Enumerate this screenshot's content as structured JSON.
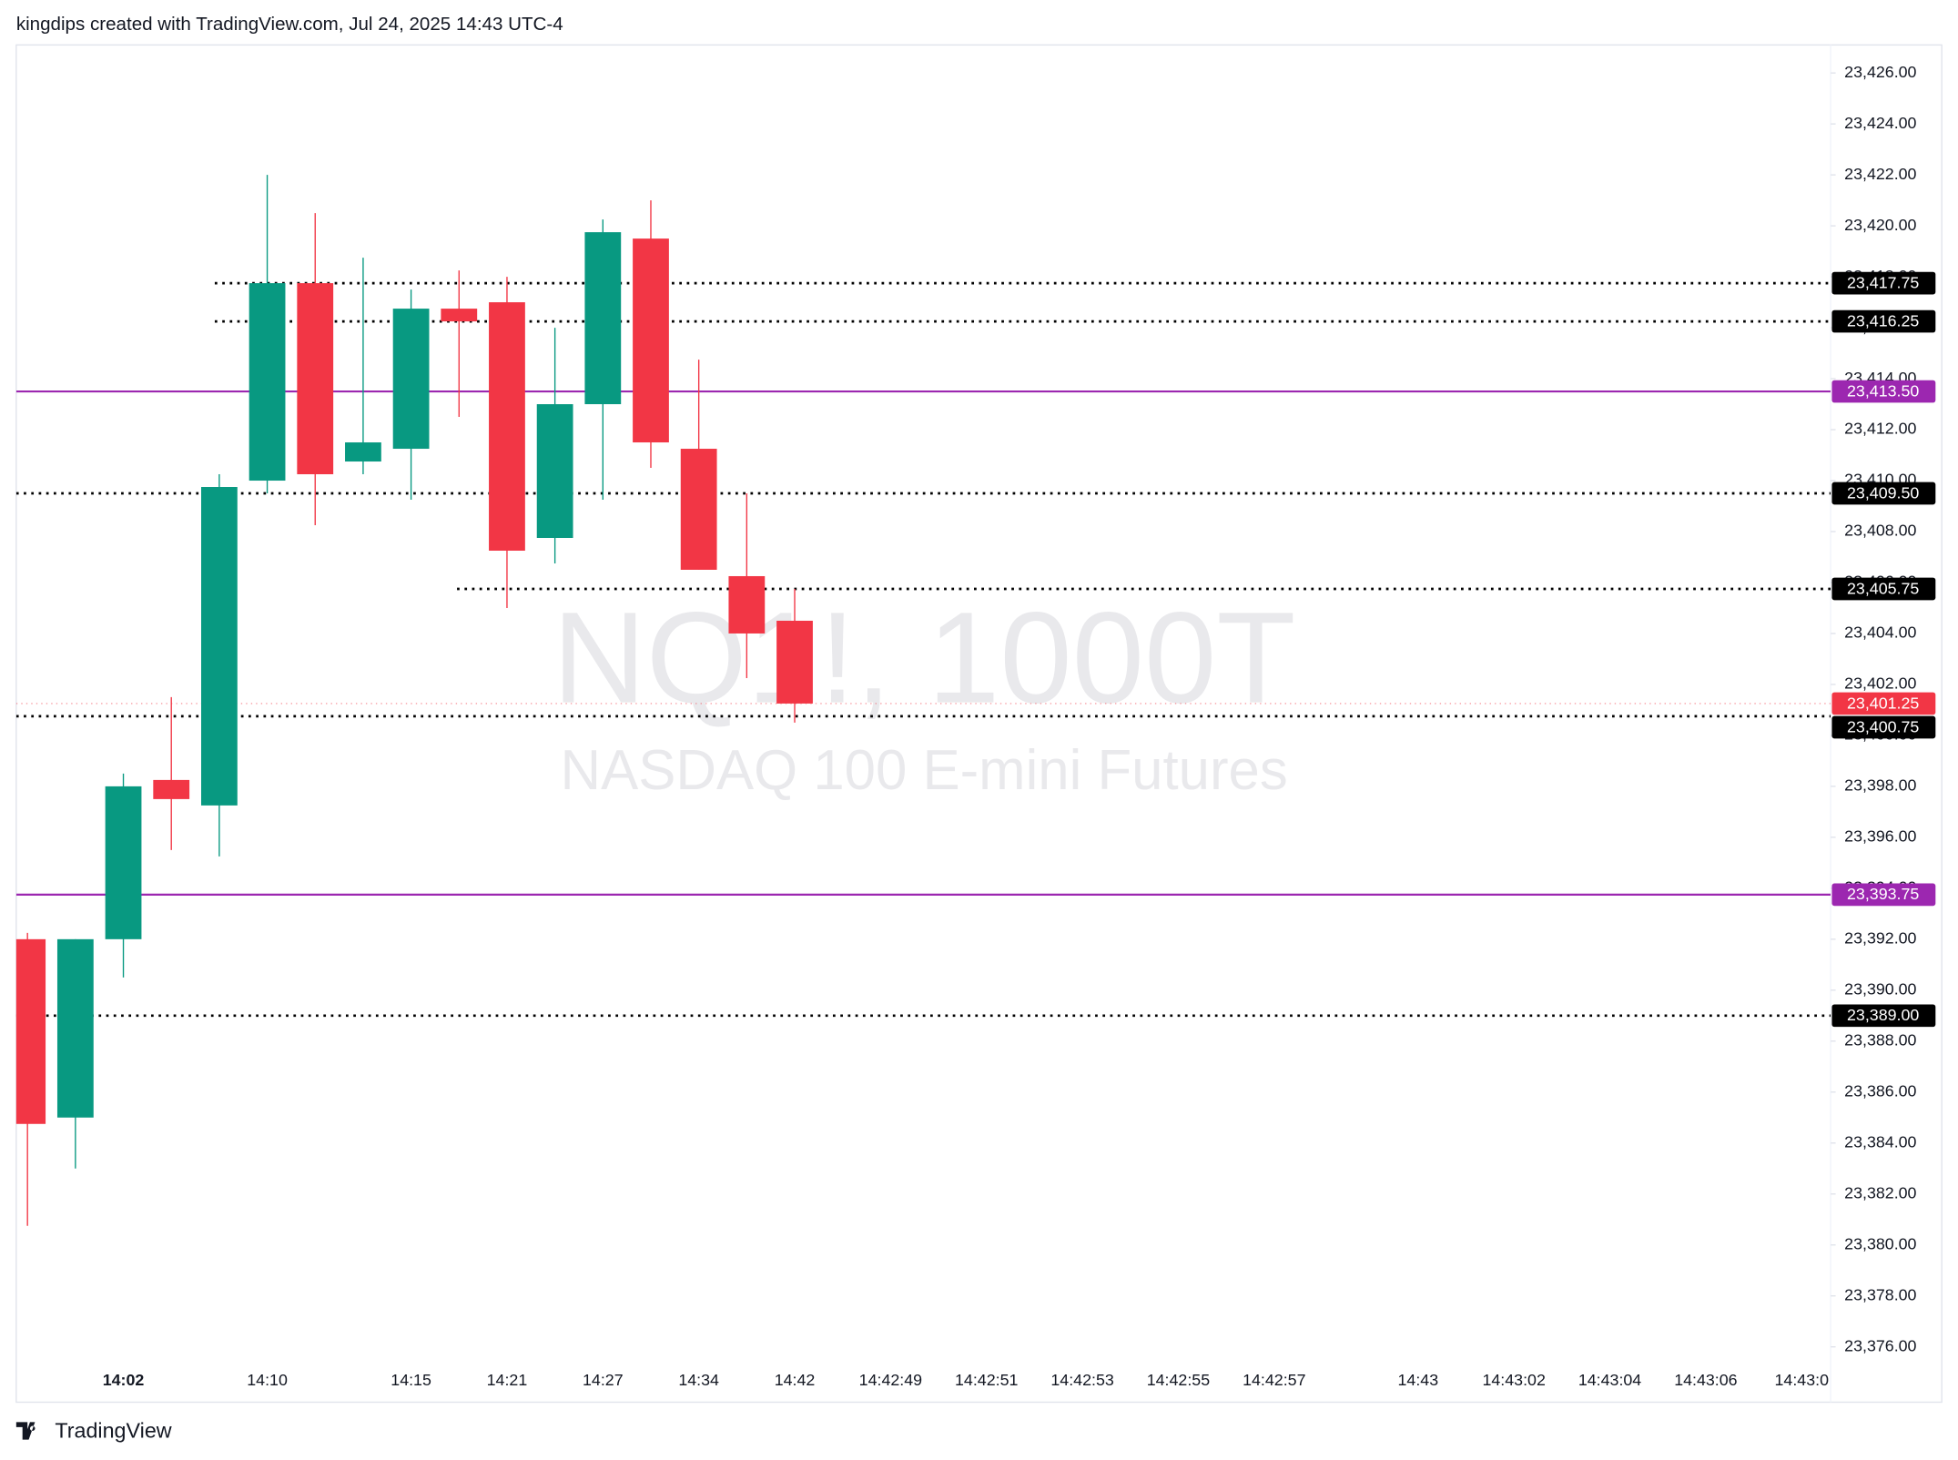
{
  "header_text": "kingdips created with TradingView.com, Jul 24, 2025 14:43 UTC-4",
  "watermark": {
    "symbol": "NQ1!, 1000T",
    "description": "NASDAQ 100 E-mini Futures"
  },
  "brand": "TradingView",
  "chart_data": {
    "type": "candlestick",
    "categories": [
      null,
      null,
      "14:02",
      null,
      null,
      "14:10",
      null,
      null,
      "14:15",
      null,
      "14:21",
      null,
      "14:27",
      null,
      "14:34",
      null,
      "14:42",
      null,
      "14:42:49",
      null,
      "14:42:51",
      null,
      "14:42:53",
      null,
      "14:42:55",
      null,
      "14:42:57",
      null,
      null,
      "14:43",
      null,
      "14:43:02",
      null,
      "14:43:04",
      null,
      "14:43:06",
      null,
      "14:43:0"
    ],
    "open": [
      23392,
      23385,
      23392,
      23398.25,
      23397.25,
      23410,
      23417.75,
      23410.75,
      23411.25,
      23416.75,
      23417,
      23407.75,
      23413,
      23419.5,
      23411.25,
      23406.25,
      23404.5,
      null,
      null,
      null,
      null,
      null,
      null,
      null,
      null,
      null,
      null,
      null,
      null,
      null,
      null,
      null,
      null,
      null,
      null,
      null,
      null,
      null
    ],
    "high": [
      23392.25,
      23392,
      23398.5,
      23401.5,
      23410.25,
      23422,
      23420.5,
      23418.75,
      23417.5,
      23418.25,
      23418,
      23416,
      23420.25,
      23421,
      23414.75,
      23409.5,
      23405.75,
      null,
      null,
      null,
      null,
      null,
      null,
      null,
      null,
      null,
      null,
      null,
      null,
      null,
      null,
      null,
      null,
      null,
      null,
      null,
      null,
      null
    ],
    "low": [
      23380.75,
      23383,
      23390.5,
      23395.5,
      23395.25,
      23409.5,
      23408.25,
      23410.25,
      23409.25,
      23412.5,
      23405,
      23406.75,
      23409.25,
      23410.5,
      23406.5,
      23402.25,
      23400.5,
      null,
      null,
      null,
      null,
      null,
      null,
      null,
      null,
      null,
      null,
      null,
      null,
      null,
      null,
      null,
      null,
      null,
      null,
      null,
      null,
      null
    ],
    "close": [
      23384.75,
      23392,
      23398,
      23397.5,
      23409.75,
      23417.75,
      23410.25,
      23411.5,
      23416.75,
      23416.25,
      23407.25,
      23413,
      23419.75,
      23411.5,
      23406.5,
      23404,
      23401.25,
      null,
      null,
      null,
      null,
      null,
      null,
      null,
      null,
      null,
      null,
      null,
      null,
      null,
      null,
      null,
      null,
      null,
      null,
      null,
      null,
      null
    ],
    "up_color": "#089981",
    "down_color": "#f23645",
    "ylim": [
      23375.2,
      23427.1
    ],
    "yticks": [
      {
        "value": 23376,
        "label": "23,376.00"
      },
      {
        "value": 23378,
        "label": "23,378.00"
      },
      {
        "value": 23380,
        "label": "23,380.00"
      },
      {
        "value": 23382,
        "label": "23,382.00"
      },
      {
        "value": 23384,
        "label": "23,384.00"
      },
      {
        "value": 23386,
        "label": "23,386.00"
      },
      {
        "value": 23388,
        "label": "23,388.00"
      },
      {
        "value": 23390,
        "label": "23,390.00"
      },
      {
        "value": 23392,
        "label": "23,392.00"
      },
      {
        "value": 23394,
        "label": "23,394.00"
      },
      {
        "value": 23396,
        "label": "23,396.00"
      },
      {
        "value": 23398,
        "label": "23,398.00"
      },
      {
        "value": 23400,
        "label": "23,400.00"
      },
      {
        "value": 23402,
        "label": "23,402.00"
      },
      {
        "value": 23404,
        "label": "23,404.00"
      },
      {
        "value": 23406,
        "label": "23,406.00"
      },
      {
        "value": 23408,
        "label": "23,408.00"
      },
      {
        "value": 23410,
        "label": "23,410.00"
      },
      {
        "value": 23412,
        "label": "23,412.00"
      },
      {
        "value": 23414,
        "label": "23,414.00"
      },
      {
        "value": 23416,
        "label": "23,416.00"
      },
      {
        "value": 23418,
        "label": "23,418.00"
      },
      {
        "value": 23420,
        "label": "23,420.00"
      },
      {
        "value": 23422,
        "label": "23,422.00"
      },
      {
        "value": 23424,
        "label": "23,424.00"
      },
      {
        "value": 23426,
        "label": "23,426.00"
      }
    ],
    "levels": [
      {
        "value": 23417.75,
        "label": "23,417.75",
        "color": "#000000",
        "style": "dotted"
      },
      {
        "value": 23416.25,
        "label": "23,416.25",
        "color": "#000000",
        "style": "dotted"
      },
      {
        "value": 23413.5,
        "label": "23,413.50",
        "color": "#9c27b0",
        "style": "solid"
      },
      {
        "value": 23409.5,
        "label": "23,409.50",
        "color": "#000000",
        "style": "dotted"
      },
      {
        "value": 23405.75,
        "label": "23,405.75",
        "color": "#000000",
        "style": "dotted"
      },
      {
        "value": 23400.75,
        "label": "23,400.75",
        "color": "#000000",
        "style": "dotted"
      },
      {
        "value": 23393.75,
        "label": "23,393.75",
        "color": "#9c27b0",
        "style": "solid"
      },
      {
        "value": 23389,
        "label": "23,389.00",
        "color": "#000000",
        "style": "dotted"
      }
    ],
    "last_price": {
      "value": 23401.25,
      "label": "23,401.25",
      "color": "#f23645"
    }
  }
}
